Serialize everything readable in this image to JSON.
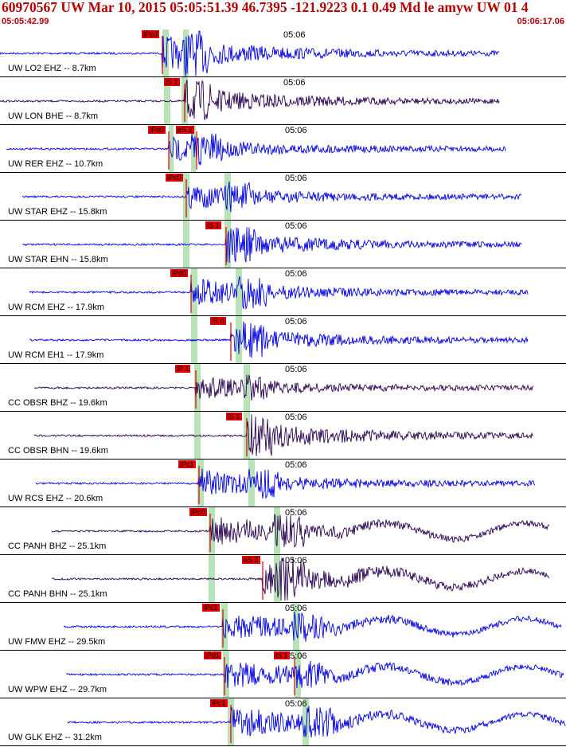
{
  "header": {
    "title": "60970567 UW Mar 10, 2015 05:05:51.39   46.7395 -121.9223  0.1 0.49 Md le amyw UW 01   4",
    "start_time": "05:05:42.99",
    "end_time": "05:06:17.06"
  },
  "chart_data": {
    "type": "line",
    "description_free": true,
    "time_range": [
      "05:05:42.99",
      "05:06:17.06"
    ],
    "tick_label": "05:06",
    "colors": {
      "blue": "#0000e6",
      "purple": "#2a0050",
      "pick": "#e00000",
      "window": "#b7e3b7"
    },
    "traces": [
      {
        "label": "UW LO2 EHZ -- 8.7km",
        "color": "blue",
        "picks": [
          "iPc0"
        ]
      },
      {
        "label": "UW LON BHE -- 8.7km",
        "color": "purple",
        "picks": [
          "iS 1"
        ]
      },
      {
        "label": "UW RER EHZ -- 10.7km",
        "color": "blue",
        "picks": [
          "iPd0",
          "eS 2"
        ]
      },
      {
        "label": "UW STAR EHZ -- 15.8km",
        "color": "blue",
        "picks": [
          "iPc0"
        ]
      },
      {
        "label": "UW STAR EHN -- 15.8km",
        "color": "blue",
        "picks": [
          "iS 1"
        ]
      },
      {
        "label": "UW RCM EHZ -- 17.9km",
        "color": "blue",
        "picks": [
          "iPd0"
        ]
      },
      {
        "label": "UW RCM EH1 -- 17.9km",
        "color": "blue",
        "picks": [
          "iS 0"
        ]
      },
      {
        "label": "CC OBSR BHZ -- 19.6km",
        "color": "purple",
        "picks": [
          "iP 1"
        ]
      },
      {
        "label": "CC OBSR BHN -- 19.6km",
        "color": "purple",
        "picks": [
          "iS 1"
        ]
      },
      {
        "label": "UW RCS EHZ -- 20.6km",
        "color": "blue",
        "picks": [
          "iPc1"
        ]
      },
      {
        "label": "CC PANH BHZ -- 25.1km",
        "color": "purple",
        "picks": [
          "iPc0"
        ]
      },
      {
        "label": "CC PANH BHN -- 25.1km",
        "color": "purple",
        "picks": [
          "eS 2"
        ]
      },
      {
        "label": "UW FMW EHZ -- 29.5km",
        "color": "blue",
        "picks": [
          "iPc1"
        ]
      },
      {
        "label": "UW WPW EHZ -- 29.7km",
        "color": "blue",
        "picks": [
          "iPd1",
          "iS 1"
        ]
      },
      {
        "label": "UW GLK EHZ -- 31.2km",
        "color": "blue",
        "picks": [
          "iPc1"
        ]
      }
    ]
  }
}
